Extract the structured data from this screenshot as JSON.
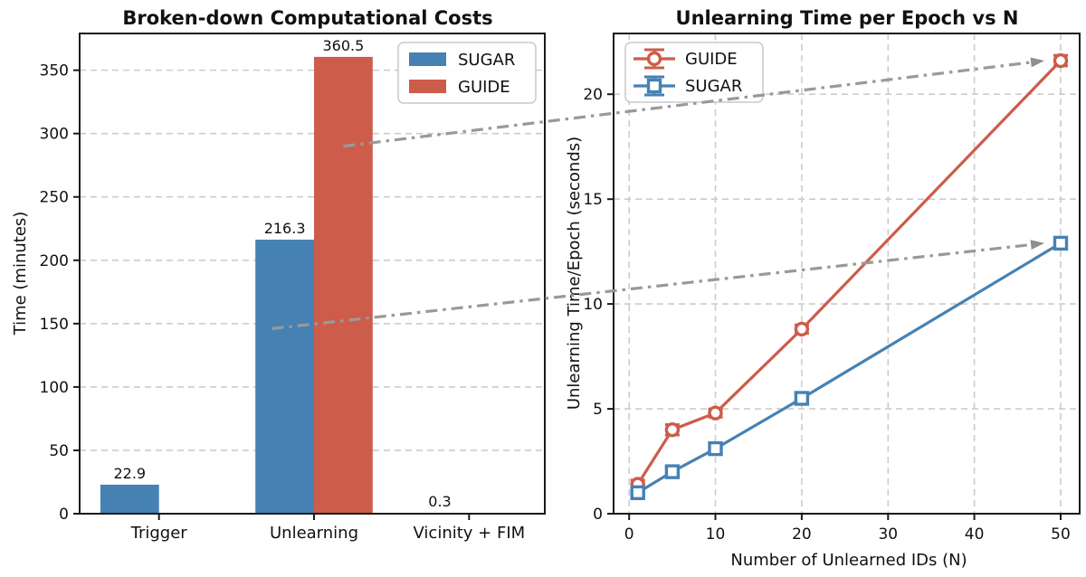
{
  "figure": {
    "background": "#ffffff",
    "accent_blue": "#4681B4",
    "accent_red": "#CD5C4A",
    "connector_color": "#999999"
  },
  "chart_data": [
    {
      "type": "bar",
      "title": "Broken-down Computational Costs",
      "ylabel": "Time (minutes)",
      "xlabel": "",
      "categories": [
        "Trigger",
        "Unlearning",
        "Vicinity + FIM"
      ],
      "series": [
        {
          "name": "SUGAR",
          "color": "#4681B4",
          "values": [
            22.9,
            216.3,
            0.3
          ]
        },
        {
          "name": "GUIDE",
          "color": "#CD5C4A",
          "values": [
            null,
            360.5,
            null
          ]
        }
      ],
      "bar_value_labels": [
        "22.9",
        "216.3",
        "360.5",
        "0.3"
      ],
      "yticks": [
        0,
        50,
        100,
        150,
        200,
        250,
        300,
        350
      ],
      "ylim": [
        0,
        379
      ],
      "grid": "horizontal-dashed",
      "legend_position": "upper right",
      "legend_labels": [
        "SUGAR",
        "GUIDE"
      ]
    },
    {
      "type": "line",
      "title": "Unlearning Time per Epoch vs N",
      "ylabel": "Unlearning Time/Epoch (seconds)",
      "xlabel": "Number of Unlearned IDs (N)",
      "x": [
        1,
        5,
        10,
        20,
        50
      ],
      "series": [
        {
          "name": "GUIDE",
          "color": "#CD5C4A",
          "marker": "circle",
          "values": [
            1.4,
            4.0,
            4.8,
            8.8,
            21.6
          ],
          "yerr": [
            0.2,
            0.25,
            0.2,
            0.2,
            0.25
          ]
        },
        {
          "name": "SUGAR",
          "color": "#4681B4",
          "marker": "square",
          "values": [
            1.0,
            2.0,
            3.1,
            5.5,
            12.9
          ],
          "yerr": [
            0.15,
            0.2,
            0.2,
            0.2,
            0.2
          ]
        }
      ],
      "xticks": [
        0,
        10,
        20,
        30,
        40,
        50
      ],
      "yticks": [
        0,
        5,
        10,
        15,
        20
      ],
      "xlim": [
        -1.8,
        52.2
      ],
      "ylim": [
        0,
        22.9
      ],
      "grid": "both-dashed",
      "legend_position": "upper left",
      "legend_labels": [
        "GUIDE",
        "SUGAR"
      ]
    }
  ],
  "annotations": {
    "connectors": [
      {
        "series": "GUIDE",
        "color": "#999999",
        "style": "dash-dot-arrow"
      },
      {
        "series": "SUGAR",
        "color": "#999999",
        "style": "dash-dot-arrow"
      }
    ]
  }
}
